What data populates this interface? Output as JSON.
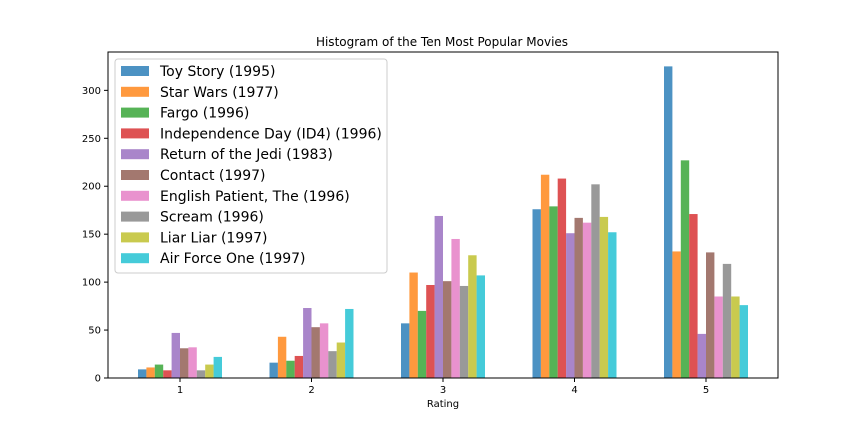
{
  "chart_data": {
    "type": "bar",
    "title": "Histogram of the Ten Most Popular Movies",
    "xlabel": "Rating",
    "ylabel": "",
    "categories": [
      "1",
      "2",
      "3",
      "4",
      "5"
    ],
    "ylim": [
      0,
      340
    ],
    "yticks": [
      0,
      50,
      100,
      150,
      200,
      250,
      300
    ],
    "legend_position": "upper-left",
    "grid": false,
    "series": [
      {
        "name": "Toy Story (1995)",
        "color": "#1f77b4",
        "values": [
          9,
          16,
          57,
          176,
          325
        ]
      },
      {
        "name": "Star Wars (1977)",
        "color": "#ff7f0e",
        "values": [
          11,
          43,
          110,
          212,
          132
        ]
      },
      {
        "name": "Fargo (1996)",
        "color": "#2ca02c",
        "values": [
          14,
          18,
          70,
          179,
          227
        ]
      },
      {
        "name": "Independence Day (ID4) (1996)",
        "color": "#d62728",
        "values": [
          8,
          23,
          97,
          208,
          171
        ]
      },
      {
        "name": "Return of the Jedi (1983)",
        "color": "#9467bd",
        "values": [
          47,
          73,
          169,
          151,
          46
        ]
      },
      {
        "name": "Contact (1997)",
        "color": "#8c564b",
        "values": [
          31,
          53,
          101,
          167,
          131
        ]
      },
      {
        "name": "English Patient, The (1996)",
        "color": "#e377c2",
        "values": [
          32,
          57,
          145,
          162,
          85
        ]
      },
      {
        "name": "Scream (1996)",
        "color": "#7f7f7f",
        "values": [
          8,
          28,
          96,
          202,
          119
        ]
      },
      {
        "name": "Liar Liar (1997)",
        "color": "#bcbd22",
        "values": [
          14,
          37,
          128,
          168,
          85
        ]
      },
      {
        "name": "Air Force One (1997)",
        "color": "#17becf",
        "values": [
          22,
          72,
          107,
          152,
          76
        ]
      }
    ]
  }
}
